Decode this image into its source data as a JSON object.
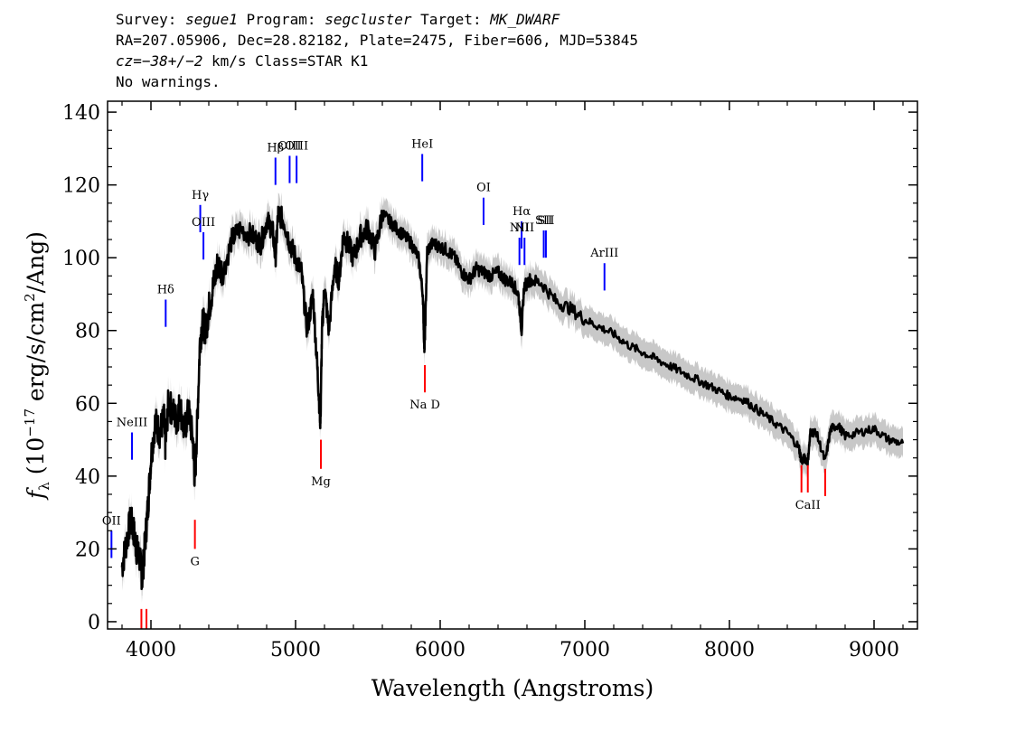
{
  "header": {
    "survey_label": "Survey: ",
    "survey": "segue1",
    "program_label": " Program: ",
    "program": "segcluster",
    "target_label": " Target: ",
    "target": "MK_DWARF",
    "line2": "RA=207.05906, Dec=28.82182, Plate=2475, Fiber=606, MJD=53845",
    "cz_label": "cz",
    "cz_value": "=−38+/−2",
    "cz_rest": " km/s Class=STAR K1",
    "line4": "No warnings."
  },
  "chart_data": {
    "type": "line",
    "xlabel": "Wavelength (Angstroms)",
    "ylabel": "f_λ (10^-17 erg/s/cm^2/Ang)",
    "xlim": [
      3700,
      9300
    ],
    "ylim": [
      -2,
      143
    ],
    "x_ticks": [
      4000,
      5000,
      6000,
      7000,
      8000,
      9000
    ],
    "y_ticks": [
      0,
      20,
      40,
      60,
      80,
      100,
      120,
      140
    ],
    "colors": {
      "flux": "#000000",
      "error_band": "#c8c8c8",
      "emission": "#0000ff",
      "absorption": "#ff0000"
    },
    "series": [
      {
        "x": [
          3800,
          3830,
          3860,
          3880,
          3900,
          3920,
          3940,
          3960,
          3980,
          4000,
          4030,
          4060,
          4090,
          4100,
          4120,
          4150,
          4180,
          4200,
          4230,
          4260,
          4290,
          4304,
          4320,
          4340,
          4360,
          4380,
          4400,
          4430,
          4460,
          4500,
          4560,
          4620,
          4700,
          4760,
          4800,
          4840,
          4861,
          4880,
          4920,
          4960,
          5000,
          5040,
          5080,
          5120,
          5150,
          5167,
          5172,
          5183,
          5200,
          5230,
          5270,
          5300,
          5330,
          5360,
          5400,
          5450,
          5500,
          5550,
          5600,
          5650,
          5700,
          5750,
          5800,
          5850,
          5880,
          5890,
          5896,
          5910,
          5950,
          6000,
          6050,
          6100,
          6150,
          6200,
          6250,
          6300,
          6350,
          6400,
          6450,
          6500,
          6540,
          6563,
          6580,
          6620,
          6700,
          6800,
          6900,
          7000,
          7100,
          7200,
          7300,
          7400,
          7500,
          7600,
          7700,
          7800,
          7900,
          8000,
          8100,
          8200,
          8300,
          8400,
          8480,
          8498,
          8520,
          8542,
          8560,
          8600,
          8662,
          8700,
          8750,
          8800,
          8900,
          9000,
          9100,
          9200
        ],
        "values": [
          15,
          22,
          28,
          25,
          20,
          18,
          12,
          22,
          32,
          45,
          55,
          52,
          56,
          48,
          60,
          58,
          55,
          60,
          52,
          58,
          50,
          38,
          55,
          78,
          82,
          80,
          86,
          92,
          98,
          96,
          105,
          108,
          106,
          104,
          110,
          108,
          100,
          112,
          110,
          104,
          100,
          96,
          80,
          90,
          70,
          58,
          55,
          80,
          92,
          80,
          98,
          94,
          106,
          104,
          100,
          106,
          108,
          102,
          112,
          110,
          108,
          106,
          104,
          100,
          90,
          75,
          80,
          102,
          104,
          103,
          102,
          100,
          96,
          94,
          97,
          96,
          95,
          96,
          94,
          93,
          90,
          80,
          92,
          94,
          93,
          88,
          86,
          83,
          81,
          79,
          76,
          74,
          72,
          70,
          68,
          66,
          64,
          62,
          61,
          58,
          55,
          52,
          48,
          44,
          45,
          44,
          52,
          52,
          44,
          53,
          54,
          51,
          52,
          53,
          50,
          49
        ],
        "err_upper": [
          19,
          26,
          32,
          29,
          24,
          22,
          16,
          26,
          36,
          49,
          59,
          56,
          60,
          52,
          64,
          62,
          59,
          64,
          56,
          62,
          54,
          42,
          59,
          82,
          86,
          84,
          90,
          96,
          102,
          100,
          109,
          112,
          110,
          108,
          114,
          112,
          104,
          116,
          114,
          108,
          104,
          100,
          84,
          94,
          74,
          62,
          59,
          84,
          96,
          84,
          102,
          98,
          110,
          108,
          104,
          110,
          112,
          106,
          116,
          114,
          112,
          110,
          108,
          104,
          94,
          79,
          84,
          106,
          108,
          107,
          106,
          104,
          100,
          98,
          101,
          100,
          99,
          100,
          98,
          97,
          94,
          84,
          96,
          98,
          97,
          92,
          90,
          87,
          85,
          83,
          80,
          78,
          76,
          74,
          72,
          70,
          68,
          66,
          65,
          62,
          59,
          56,
          52,
          48,
          49,
          48,
          56,
          56,
          48,
          57,
          58,
          55,
          56,
          57,
          54,
          53
        ],
        "err_lower": [
          11,
          18,
          24,
          21,
          16,
          14,
          8,
          18,
          28,
          41,
          51,
          48,
          52,
          44,
          56,
          54,
          51,
          56,
          48,
          54,
          46,
          34,
          51,
          74,
          78,
          76,
          82,
          88,
          94,
          92,
          101,
          104,
          102,
          100,
          106,
          104,
          96,
          108,
          106,
          100,
          96,
          92,
          76,
          86,
          66,
          54,
          51,
          76,
          88,
          76,
          94,
          90,
          102,
          100,
          96,
          102,
          104,
          98,
          108,
          106,
          104,
          102,
          100,
          96,
          86,
          71,
          76,
          98,
          100,
          99,
          98,
          96,
          92,
          90,
          93,
          92,
          91,
          92,
          90,
          89,
          86,
          76,
          88,
          90,
          89,
          84,
          82,
          79,
          77,
          75,
          72,
          70,
          68,
          66,
          64,
          62,
          60,
          58,
          57,
          54,
          51,
          48,
          44,
          40,
          41,
          40,
          48,
          48,
          40,
          49,
          50,
          47,
          48,
          49,
          46,
          45
        ]
      }
    ],
    "emission_lines": [
      {
        "label": "OII",
        "wave": 3727,
        "y0": 17.5,
        "y1": 25
      },
      {
        "label": "NeIII",
        "wave": 3869,
        "y0": 44.5,
        "y1": 52
      },
      {
        "label": "Hδ",
        "wave": 4102,
        "y0": 81,
        "y1": 88.5
      },
      {
        "label": "Hγ",
        "wave": 4341,
        "y0": 107,
        "y1": 114.5
      },
      {
        "label": "OIII",
        "wave": 4363,
        "y0": 99.5,
        "y1": 107
      },
      {
        "label": "Hβ",
        "wave": 4861,
        "y0": 120,
        "y1": 127.5
      },
      {
        "label": "OIII",
        "wave": 4959,
        "y0": 120.5,
        "y1": 128
      },
      {
        "label": "OIII",
        "wave": 5007,
        "y0": 120.5,
        "y1": 128
      },
      {
        "label": "HeI",
        "wave": 5876,
        "y0": 121,
        "y1": 128.5
      },
      {
        "label": "OI",
        "wave": 6300,
        "y0": 109,
        "y1": 116.5
      },
      {
        "label": "NII",
        "wave": 6548,
        "y0": 98,
        "y1": 105.5
      },
      {
        "label": "Hα",
        "wave": 6563,
        "y0": 102.5,
        "y1": 110
      },
      {
        "label": "NII",
        "wave": 6583,
        "y0": 98,
        "y1": 105.5
      },
      {
        "label": "SII",
        "wave": 6716,
        "y0": 100,
        "y1": 107.5
      },
      {
        "label": "SII",
        "wave": 6731,
        "y0": 100,
        "y1": 107.5
      },
      {
        "label": "ArIII",
        "wave": 7136,
        "y0": 91,
        "y1": 98.5
      }
    ],
    "absorption_lines": [
      {
        "label": "",
        "wave": 3934,
        "y0": -2,
        "y1": 3.5
      },
      {
        "label": "",
        "wave": 3969,
        "y0": -2,
        "y1": 3.5
      },
      {
        "label": "G",
        "wave": 4304,
        "y0": 20,
        "y1": 28
      },
      {
        "label": "Mg",
        "wave": 5175,
        "y0": 42,
        "y1": 50
      },
      {
        "label": "Na D",
        "wave": 5894,
        "y0": 63,
        "y1": 70.5
      },
      {
        "label": "",
        "wave": 8498,
        "y0": 35.5,
        "y1": 43
      },
      {
        "label": "CaII",
        "wave": 8542,
        "y0": 35.5,
        "y1": 43
      },
      {
        "label": "",
        "wave": 8662,
        "y0": 34.5,
        "y1": 42
      }
    ]
  }
}
